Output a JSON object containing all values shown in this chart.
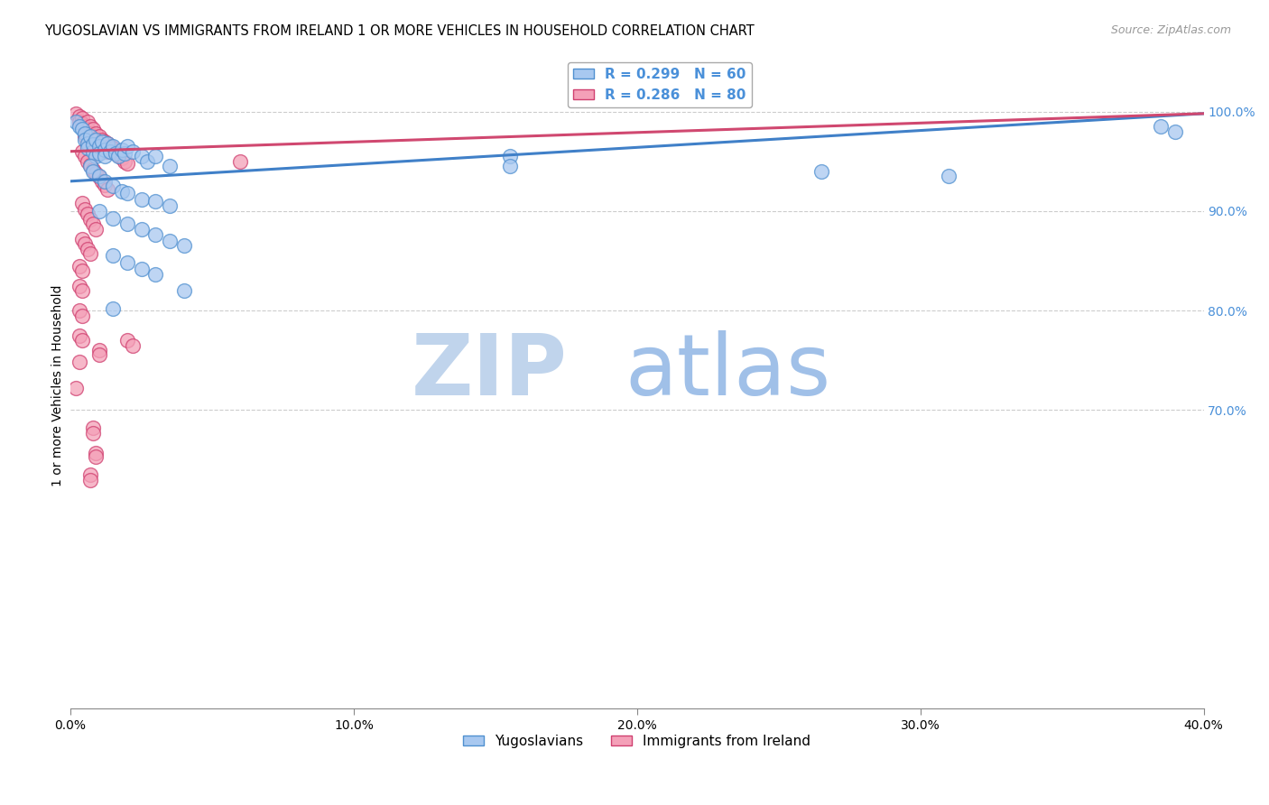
{
  "title": "YUGOSLAVIAN VS IMMIGRANTS FROM IRELAND 1 OR MORE VEHICLES IN HOUSEHOLD CORRELATION CHART",
  "source": "Source: ZipAtlas.com",
  "ylabel": "1 or more Vehicles in Household",
  "xlabel_ticks": [
    "0.0%",
    "10.0%",
    "20.0%",
    "30.0%",
    "40.0%"
  ],
  "xlim": [
    0.0,
    0.4
  ],
  "ylim": [
    0.4,
    1.05
  ],
  "legend_blue_r": "R = 0.299",
  "legend_blue_n": "N = 60",
  "legend_pink_r": "R = 0.286",
  "legend_pink_n": "N = 80",
  "blue_color": "#A8C8F0",
  "pink_color": "#F4A0B8",
  "blue_edge_color": "#5090D0",
  "pink_edge_color": "#D04070",
  "blue_line_color": "#4080C8",
  "pink_line_color": "#D04870",
  "watermark_zip_color": "#C0D4EC",
  "watermark_atlas_color": "#A0C0E8",
  "grid_color": "#CCCCCC",
  "right_tick_color": "#4A90D9",
  "blue_scatter": [
    [
      0.002,
      0.99
    ],
    [
      0.003,
      0.985
    ],
    [
      0.004,
      0.982
    ],
    [
      0.005,
      0.978
    ],
    [
      0.005,
      0.972
    ],
    [
      0.006,
      0.968
    ],
    [
      0.006,
      0.963
    ],
    [
      0.007,
      0.975
    ],
    [
      0.008,
      0.96
    ],
    [
      0.008,
      0.967
    ],
    [
      0.009,
      0.972
    ],
    [
      0.009,
      0.955
    ],
    [
      0.01,
      0.965
    ],
    [
      0.01,
      0.958
    ],
    [
      0.011,
      0.97
    ],
    [
      0.012,
      0.962
    ],
    [
      0.012,
      0.955
    ],
    [
      0.013,
      0.968
    ],
    [
      0.014,
      0.96
    ],
    [
      0.015,
      0.965
    ],
    [
      0.016,
      0.958
    ],
    [
      0.017,
      0.955
    ],
    [
      0.018,
      0.962
    ],
    [
      0.019,
      0.958
    ],
    [
      0.02,
      0.965
    ],
    [
      0.022,
      0.96
    ],
    [
      0.025,
      0.955
    ],
    [
      0.027,
      0.95
    ],
    [
      0.03,
      0.955
    ],
    [
      0.035,
      0.945
    ],
    [
      0.007,
      0.945
    ],
    [
      0.008,
      0.94
    ],
    [
      0.01,
      0.935
    ],
    [
      0.012,
      0.93
    ],
    [
      0.015,
      0.925
    ],
    [
      0.018,
      0.92
    ],
    [
      0.02,
      0.918
    ],
    [
      0.025,
      0.912
    ],
    [
      0.03,
      0.91
    ],
    [
      0.035,
      0.905
    ],
    [
      0.01,
      0.9
    ],
    [
      0.015,
      0.893
    ],
    [
      0.02,
      0.887
    ],
    [
      0.025,
      0.882
    ],
    [
      0.03,
      0.876
    ],
    [
      0.035,
      0.87
    ],
    [
      0.04,
      0.865
    ],
    [
      0.015,
      0.855
    ],
    [
      0.02,
      0.848
    ],
    [
      0.025,
      0.842
    ],
    [
      0.03,
      0.836
    ],
    [
      0.04,
      0.82
    ],
    [
      0.015,
      0.802
    ],
    [
      0.155,
      0.955
    ],
    [
      0.155,
      0.945
    ],
    [
      0.265,
      0.94
    ],
    [
      0.31,
      0.935
    ],
    [
      0.385,
      0.985
    ],
    [
      0.39,
      0.98
    ]
  ],
  "pink_scatter": [
    [
      0.002,
      0.998
    ],
    [
      0.003,
      0.995
    ],
    [
      0.003,
      0.99
    ],
    [
      0.004,
      0.993
    ],
    [
      0.004,
      0.988
    ],
    [
      0.005,
      0.985
    ],
    [
      0.005,
      0.98
    ],
    [
      0.005,
      0.975
    ],
    [
      0.006,
      0.99
    ],
    [
      0.006,
      0.982
    ],
    [
      0.006,
      0.976
    ],
    [
      0.007,
      0.985
    ],
    [
      0.007,
      0.978
    ],
    [
      0.007,
      0.97
    ],
    [
      0.008,
      0.982
    ],
    [
      0.008,
      0.975
    ],
    [
      0.008,
      0.968
    ],
    [
      0.009,
      0.978
    ],
    [
      0.009,
      0.971
    ],
    [
      0.009,
      0.963
    ],
    [
      0.01,
      0.975
    ],
    [
      0.01,
      0.968
    ],
    [
      0.01,
      0.96
    ],
    [
      0.011,
      0.972
    ],
    [
      0.011,
      0.965
    ],
    [
      0.012,
      0.97
    ],
    [
      0.012,
      0.962
    ],
    [
      0.013,
      0.968
    ],
    [
      0.013,
      0.96
    ],
    [
      0.014,
      0.965
    ],
    [
      0.015,
      0.963
    ],
    [
      0.016,
      0.958
    ],
    [
      0.017,
      0.956
    ],
    [
      0.018,
      0.953
    ],
    [
      0.019,
      0.95
    ],
    [
      0.02,
      0.948
    ],
    [
      0.004,
      0.96
    ],
    [
      0.005,
      0.955
    ],
    [
      0.006,
      0.95
    ],
    [
      0.007,
      0.946
    ],
    [
      0.008,
      0.942
    ],
    [
      0.009,
      0.938
    ],
    [
      0.01,
      0.934
    ],
    [
      0.011,
      0.93
    ],
    [
      0.012,
      0.926
    ],
    [
      0.013,
      0.922
    ],
    [
      0.004,
      0.908
    ],
    [
      0.005,
      0.902
    ],
    [
      0.006,
      0.897
    ],
    [
      0.007,
      0.892
    ],
    [
      0.008,
      0.887
    ],
    [
      0.009,
      0.882
    ],
    [
      0.004,
      0.872
    ],
    [
      0.005,
      0.867
    ],
    [
      0.006,
      0.862
    ],
    [
      0.007,
      0.857
    ],
    [
      0.003,
      0.845
    ],
    [
      0.004,
      0.84
    ],
    [
      0.003,
      0.825
    ],
    [
      0.004,
      0.82
    ],
    [
      0.003,
      0.8
    ],
    [
      0.004,
      0.795
    ],
    [
      0.003,
      0.775
    ],
    [
      0.004,
      0.77
    ],
    [
      0.003,
      0.748
    ],
    [
      0.02,
      0.77
    ],
    [
      0.022,
      0.765
    ],
    [
      0.002,
      0.722
    ],
    [
      0.01,
      0.76
    ],
    [
      0.01,
      0.756
    ],
    [
      0.008,
      0.682
    ],
    [
      0.008,
      0.677
    ],
    [
      0.009,
      0.657
    ],
    [
      0.009,
      0.653
    ],
    [
      0.007,
      0.635
    ],
    [
      0.007,
      0.63
    ],
    [
      0.06,
      0.95
    ]
  ],
  "blue_trend": [
    0.0,
    0.4,
    0.93,
    0.998
  ],
  "pink_trend": [
    0.0,
    0.4,
    0.96,
    0.998
  ]
}
